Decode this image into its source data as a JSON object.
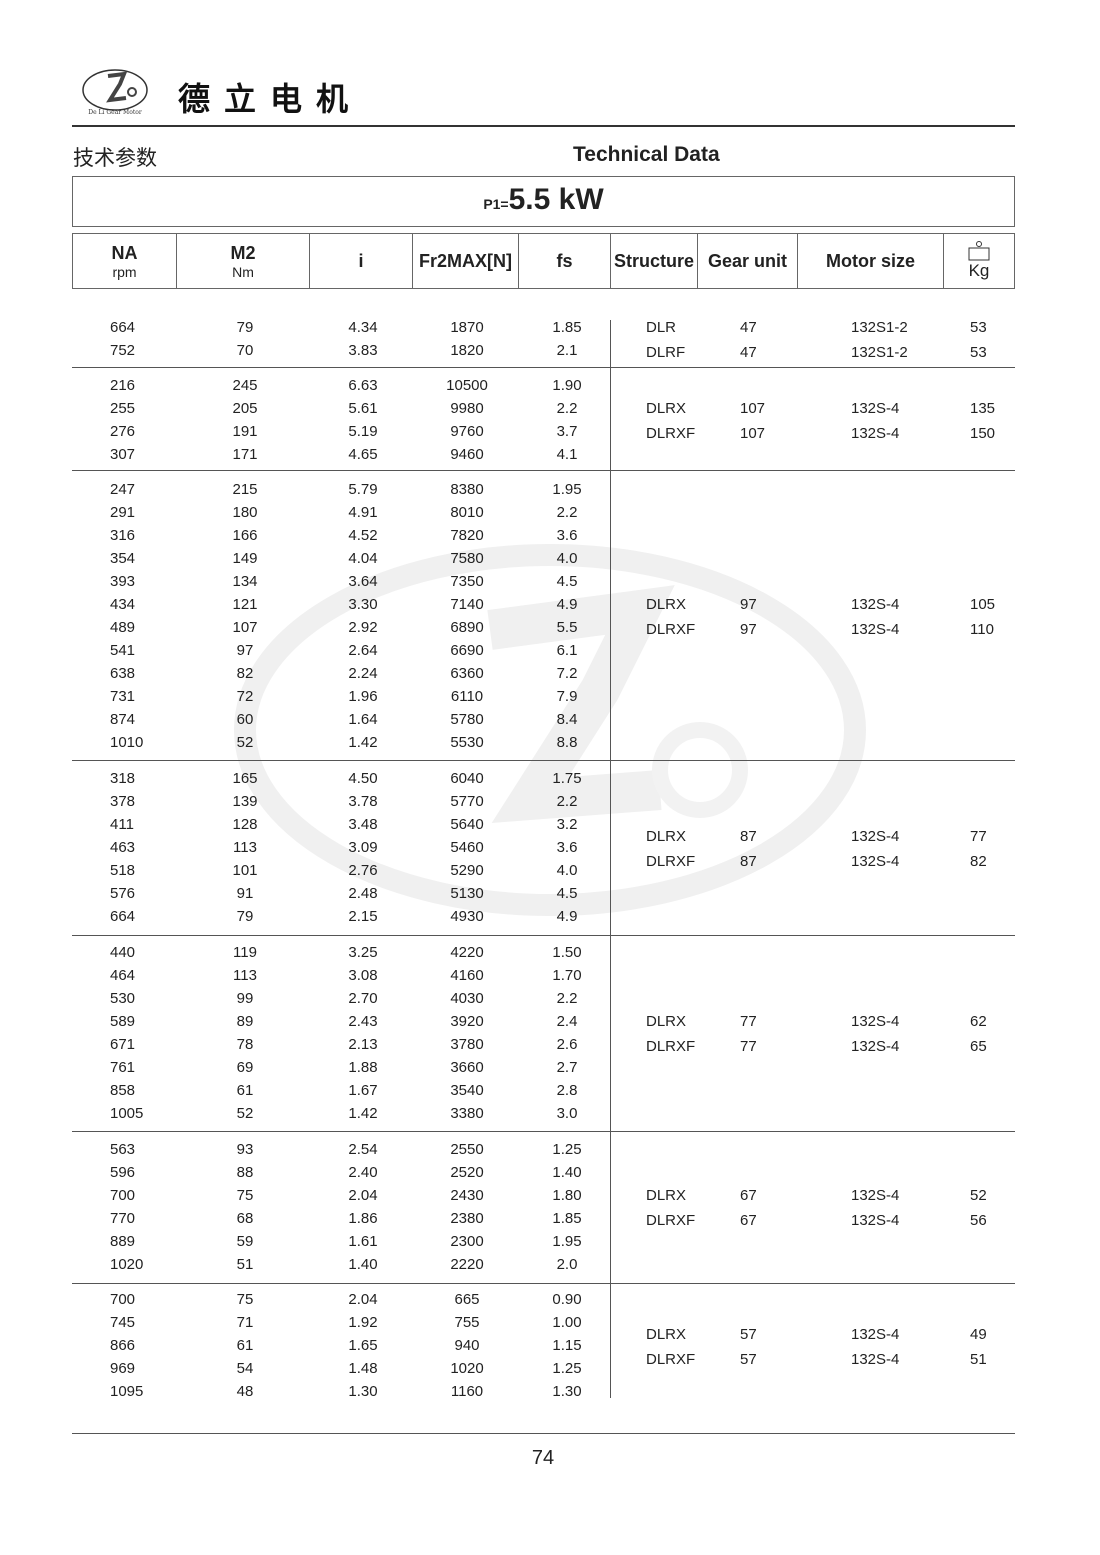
{
  "brand": {
    "name_cn": "德立电机",
    "logo_text": "De Li Gear Motor"
  },
  "titles": {
    "cn": "技术参数",
    "en": "Technical Data"
  },
  "power": {
    "prefix": "P1=",
    "value": "5.5 kW"
  },
  "headers": {
    "na": "NA",
    "na_unit": "rpm",
    "m2": "M2",
    "m2_unit": "Nm",
    "i": "i",
    "fr": "Fr2MAX[N]",
    "fs": "fs",
    "structure": "Structure",
    "gear_unit": "Gear unit",
    "motor_size": "Motor size",
    "kg": "Kg"
  },
  "groups": [
    {
      "rows": [
        [
          "664",
          "79",
          "4.34",
          "1870",
          "1.85"
        ],
        [
          "752",
          "70",
          "3.83",
          "1820",
          "2.1"
        ]
      ],
      "right": [
        [
          "DLR",
          "47",
          "132S1-2",
          "53"
        ],
        [
          "DLRF",
          "47",
          "132S1-2",
          "53"
        ]
      ]
    },
    {
      "rows": [
        [
          "216",
          "245",
          "6.63",
          "10500",
          "1.90"
        ],
        [
          "255",
          "205",
          "5.61",
          "9980",
          "2.2"
        ],
        [
          "276",
          "191",
          "5.19",
          "9760",
          "3.7"
        ],
        [
          "307",
          "171",
          "4.65",
          "9460",
          "4.1"
        ]
      ],
      "right": [
        [
          "DLRX",
          "107",
          "132S-4",
          "135"
        ],
        [
          "DLRXF",
          "107",
          "132S-4",
          "150"
        ]
      ]
    },
    {
      "rows": [
        [
          "247",
          "215",
          "5.79",
          "8380",
          "1.95"
        ],
        [
          "291",
          "180",
          "4.91",
          "8010",
          "2.2"
        ],
        [
          "316",
          "166",
          "4.52",
          "7820",
          "3.6"
        ],
        [
          "354",
          "149",
          "4.04",
          "7580",
          "4.0"
        ],
        [
          "393",
          "134",
          "3.64",
          "7350",
          "4.5"
        ],
        [
          "434",
          "121",
          "3.30",
          "7140",
          "4.9"
        ],
        [
          "489",
          "107",
          "2.92",
          "6890",
          "5.5"
        ],
        [
          "541",
          "97",
          "2.64",
          "6690",
          "6.1"
        ],
        [
          "638",
          "82",
          "2.24",
          "6360",
          "7.2"
        ],
        [
          "731",
          "72",
          "1.96",
          "6110",
          "7.9"
        ],
        [
          "874",
          "60",
          "1.64",
          "5780",
          "8.4"
        ],
        [
          "1010",
          "52",
          "1.42",
          "5530",
          "8.8"
        ]
      ],
      "right": [
        [
          "DLRX",
          "97",
          "132S-4",
          "105"
        ],
        [
          "DLRXF",
          "97",
          "132S-4",
          "110"
        ]
      ]
    },
    {
      "rows": [
        [
          "318",
          "165",
          "4.50",
          "6040",
          "1.75"
        ],
        [
          "378",
          "139",
          "3.78",
          "5770",
          "2.2"
        ],
        [
          "411",
          "128",
          "3.48",
          "5640",
          "3.2"
        ],
        [
          "463",
          "113",
          "3.09",
          "5460",
          "3.6"
        ],
        [
          "518",
          "101",
          "2.76",
          "5290",
          "4.0"
        ],
        [
          "576",
          "91",
          "2.48",
          "5130",
          "4.5"
        ],
        [
          "664",
          "79",
          "2.15",
          "4930",
          "4.9"
        ]
      ],
      "right": [
        [
          "DLRX",
          "87",
          "132S-4",
          "77"
        ],
        [
          "DLRXF",
          "87",
          "132S-4",
          "82"
        ]
      ]
    },
    {
      "rows": [
        [
          "440",
          "119",
          "3.25",
          "4220",
          "1.50"
        ],
        [
          "464",
          "113",
          "3.08",
          "4160",
          "1.70"
        ],
        [
          "530",
          "99",
          "2.70",
          "4030",
          "2.2"
        ],
        [
          "589",
          "89",
          "2.43",
          "3920",
          "2.4"
        ],
        [
          "671",
          "78",
          "2.13",
          "3780",
          "2.6"
        ],
        [
          "761",
          "69",
          "1.88",
          "3660",
          "2.7"
        ],
        [
          "858",
          "61",
          "1.67",
          "3540",
          "2.8"
        ],
        [
          "1005",
          "52",
          "1.42",
          "3380",
          "3.0"
        ]
      ],
      "right": [
        [
          "DLRX",
          "77",
          "132S-4",
          "62"
        ],
        [
          "DLRXF",
          "77",
          "132S-4",
          "65"
        ]
      ]
    },
    {
      "rows": [
        [
          "563",
          "93",
          "2.54",
          "2550",
          "1.25"
        ],
        [
          "596",
          "88",
          "2.40",
          "2520",
          "1.40"
        ],
        [
          "700",
          "75",
          "2.04",
          "2430",
          "1.80"
        ],
        [
          "770",
          "68",
          "1.86",
          "2380",
          "1.85"
        ],
        [
          "889",
          "59",
          "1.61",
          "2300",
          "1.95"
        ],
        [
          "1020",
          "51",
          "1.40",
          "2220",
          "2.0"
        ]
      ],
      "right": [
        [
          "DLRX",
          "67",
          "132S-4",
          "52"
        ],
        [
          "DLRXF",
          "67",
          "132S-4",
          "56"
        ]
      ]
    },
    {
      "rows": [
        [
          "700",
          "75",
          "2.04",
          "665",
          "0.90"
        ],
        [
          "745",
          "71",
          "1.92",
          "755",
          "1.00"
        ],
        [
          "866",
          "61",
          "1.65",
          "940",
          "1.15"
        ],
        [
          "969",
          "54",
          "1.48",
          "1020",
          "1.25"
        ],
        [
          "1095",
          "48",
          "1.30",
          "1160",
          "1.30"
        ]
      ],
      "right": [
        [
          "DLRX",
          "57",
          "132S-4",
          "49"
        ],
        [
          "DLRXF",
          "57",
          "132S-4",
          "51"
        ]
      ]
    }
  ],
  "page_number": "74"
}
